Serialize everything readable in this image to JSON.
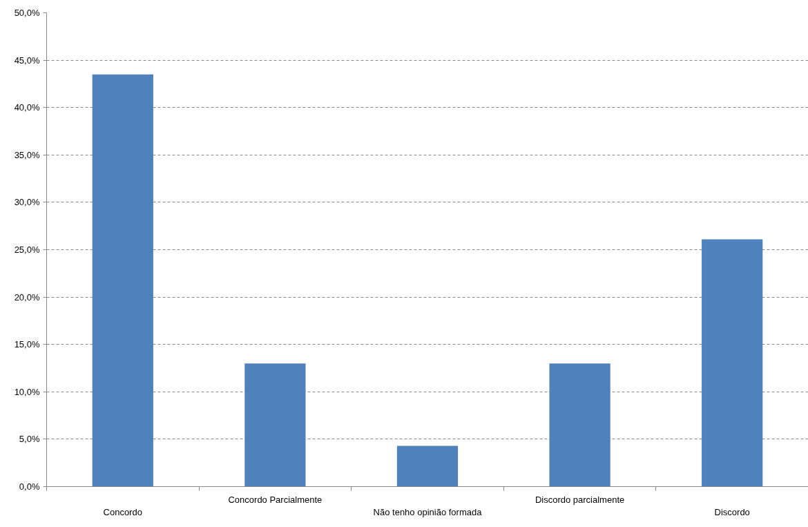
{
  "chart_data": {
    "type": "bar",
    "categories": [
      "Concordo",
      "Concordo Parcialmente",
      "Não tenho opinião formada",
      "Discordo parcialmente",
      "Discordo"
    ],
    "values": [
      43.5,
      13.0,
      4.3,
      13.0,
      26.1
    ],
    "color": "#4f81bd",
    "ylim": [
      0,
      50
    ],
    "yticks": [
      {
        "value": 0,
        "label": "0,0%"
      },
      {
        "value": 5,
        "label": "5,0%"
      },
      {
        "value": 10,
        "label": "10,0%"
      },
      {
        "value": 15,
        "label": "15,0%"
      },
      {
        "value": 20,
        "label": "20,0%"
      },
      {
        "value": 25,
        "label": "25,0%"
      },
      {
        "value": 30,
        "label": "30,0%"
      },
      {
        "value": 35,
        "label": "35,0%"
      },
      {
        "value": 40,
        "label": "40,0%"
      },
      {
        "value": 45,
        "label": "45,0%"
      },
      {
        "value": 50,
        "label": "50,0%"
      }
    ],
    "grid": "y"
  }
}
